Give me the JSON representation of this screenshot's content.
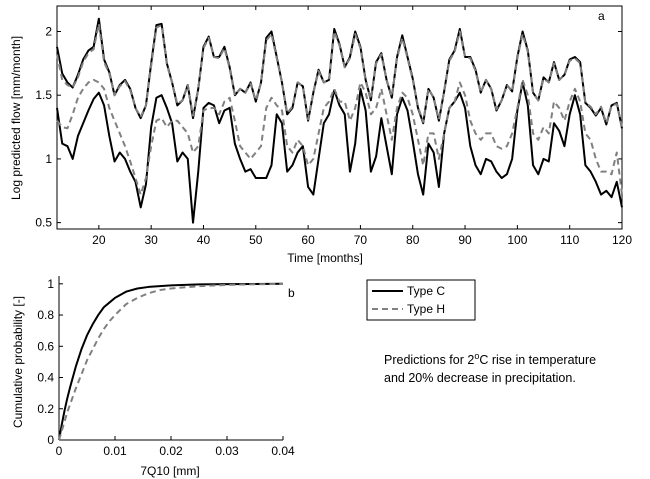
{
  "annotation": {
    "line1_prefix": "Predictions for 2",
    "line1_sup": "o",
    "line1_suffix": "C rise in temperature",
    "line2": "and 20% decrease in precipitation."
  },
  "colors": {
    "type_c": "#000000",
    "type_h": "#808080"
  },
  "chart_data": [
    {
      "type": "line",
      "panel_label": "a",
      "xlabel": "Time [months]",
      "ylabel": "Log predicted flow [mm/month]",
      "xlim": [
        12,
        120
      ],
      "ylim": [
        0.45,
        2.2
      ],
      "xticks": [
        20,
        30,
        40,
        50,
        60,
        70,
        80,
        90,
        100,
        110,
        120
      ],
      "yticks": [
        0.5,
        1,
        1.5,
        2
      ],
      "ytick_labels": [
        "0.5",
        "1",
        "1.5",
        "2"
      ],
      "grid": false,
      "x": [
        12,
        13,
        14,
        15,
        16,
        17,
        18,
        19,
        20,
        21,
        22,
        23,
        24,
        25,
        26,
        27,
        28,
        29,
        30,
        31,
        32,
        33,
        34,
        35,
        36,
        37,
        38,
        39,
        40,
        41,
        42,
        43,
        44,
        45,
        46,
        47,
        48,
        49,
        50,
        51,
        52,
        53,
        54,
        55,
        56,
        57,
        58,
        59,
        60,
        61,
        62,
        63,
        64,
        65,
        66,
        67,
        68,
        69,
        70,
        71,
        72,
        73,
        74,
        75,
        76,
        77,
        78,
        79,
        80,
        81,
        82,
        83,
        84,
        85,
        86,
        87,
        88,
        89,
        90,
        91,
        92,
        93,
        94,
        95,
        96,
        97,
        98,
        99,
        100,
        101,
        102,
        103,
        104,
        105,
        106,
        107,
        108,
        109,
        110,
        111,
        112,
        113,
        114,
        115,
        116,
        117,
        118,
        119,
        120
      ],
      "series": [
        {
          "style": "solid",
          "color": "#000000",
          "values": [
            1.88,
            1.67,
            1.6,
            1.56,
            1.66,
            1.78,
            1.85,
            1.88,
            2.1,
            1.78,
            1.68,
            1.5,
            1.58,
            1.62,
            1.55,
            1.4,
            1.32,
            1.42,
            1.75,
            2.05,
            2.06,
            1.75,
            1.6,
            1.42,
            1.46,
            1.58,
            1.32,
            1.55,
            1.88,
            1.96,
            1.8,
            1.8,
            1.88,
            1.72,
            1.5,
            1.55,
            1.52,
            1.6,
            1.45,
            1.6,
            1.95,
            2.0,
            1.8,
            1.6,
            1.35,
            1.4,
            1.6,
            1.57,
            1.3,
            1.52,
            1.7,
            1.6,
            1.62,
            2.02,
            1.9,
            1.72,
            1.8,
            2.0,
            1.88,
            1.62,
            1.46,
            1.76,
            1.83,
            1.62,
            1.48,
            1.8,
            1.97,
            1.8,
            1.63,
            1.4,
            1.28,
            1.55,
            1.48,
            1.3,
            1.53,
            1.78,
            1.85,
            2.02,
            1.8,
            1.8,
            1.7,
            1.52,
            1.62,
            1.55,
            1.38,
            1.46,
            1.58,
            1.53,
            1.8,
            2.0,
            1.85,
            1.52,
            1.46,
            1.64,
            1.6,
            1.76,
            1.62,
            1.66,
            1.78,
            1.8,
            1.76,
            1.44,
            1.4,
            1.34,
            1.4,
            1.27,
            1.42,
            1.44,
            1.24
          ]
        },
        {
          "style": "solid",
          "color": "#000000",
          "values": [
            1.4,
            1.12,
            1.1,
            1.0,
            1.18,
            1.28,
            1.38,
            1.47,
            1.52,
            1.42,
            1.18,
            0.98,
            1.05,
            1.0,
            0.9,
            0.82,
            0.62,
            0.8,
            1.25,
            1.48,
            1.5,
            1.4,
            1.28,
            0.98,
            1.05,
            1.0,
            0.5,
            0.9,
            1.4,
            1.44,
            1.42,
            1.28,
            1.38,
            1.4,
            1.12,
            1.0,
            0.9,
            0.92,
            0.85,
            0.85,
            0.85,
            0.95,
            1.35,
            1.28,
            0.9,
            0.95,
            1.05,
            1.1,
            0.78,
            0.72,
            1.0,
            1.28,
            1.35,
            1.54,
            1.42,
            1.35,
            0.9,
            1.12,
            1.55,
            1.38,
            0.9,
            1.02,
            1.32,
            1.1,
            0.88,
            1.35,
            1.48,
            1.38,
            1.14,
            0.88,
            0.72,
            1.12,
            1.05,
            0.78,
            1.2,
            1.4,
            1.45,
            1.52,
            1.4,
            1.1,
            0.95,
            0.88,
            1.0,
            0.98,
            0.9,
            0.85,
            0.88,
            1.0,
            1.38,
            1.6,
            1.42,
            0.95,
            0.88,
            1.0,
            0.98,
            1.28,
            1.22,
            1.1,
            1.35,
            1.5,
            1.35,
            0.95,
            0.9,
            0.82,
            0.72,
            0.75,
            0.7,
            0.82,
            0.62
          ]
        },
        {
          "style": "dashed",
          "color": "#808080",
          "values": [
            1.82,
            1.62,
            1.58,
            1.56,
            1.64,
            1.76,
            1.83,
            1.86,
            2.06,
            1.76,
            1.67,
            1.5,
            1.57,
            1.61,
            1.54,
            1.4,
            1.33,
            1.42,
            1.73,
            2.03,
            2.05,
            1.74,
            1.6,
            1.43,
            1.46,
            1.58,
            1.34,
            1.55,
            1.87,
            1.95,
            1.8,
            1.79,
            1.87,
            1.71,
            1.5,
            1.55,
            1.52,
            1.59,
            1.46,
            1.6,
            1.93,
            1.98,
            1.79,
            1.6,
            1.36,
            1.41,
            1.6,
            1.57,
            1.31,
            1.52,
            1.69,
            1.6,
            1.62,
            2.0,
            1.89,
            1.72,
            1.79,
            1.98,
            1.87,
            1.61,
            1.47,
            1.75,
            1.82,
            1.62,
            1.49,
            1.79,
            1.95,
            1.79,
            1.62,
            1.41,
            1.29,
            1.55,
            1.48,
            1.31,
            1.53,
            1.77,
            1.84,
            2.0,
            1.8,
            1.79,
            1.69,
            1.52,
            1.62,
            1.55,
            1.39,
            1.46,
            1.58,
            1.53,
            1.79,
            1.98,
            1.84,
            1.52,
            1.46,
            1.63,
            1.6,
            1.75,
            1.62,
            1.66,
            1.77,
            1.79,
            1.75,
            1.44,
            1.41,
            1.35,
            1.41,
            1.28,
            1.42,
            1.43,
            1.25
          ]
        },
        {
          "style": "dashed",
          "color": "#808080",
          "values": [
            1.3,
            1.25,
            1.24,
            1.35,
            1.48,
            1.55,
            1.6,
            1.62,
            1.6,
            1.55,
            1.4,
            1.3,
            1.2,
            1.1,
            0.98,
            0.85,
            0.72,
            0.85,
            1.1,
            1.3,
            1.32,
            1.25,
            1.3,
            1.3,
            1.25,
            1.2,
            1.05,
            1.1,
            1.38,
            1.4,
            1.4,
            1.35,
            1.45,
            1.48,
            1.3,
            1.1,
            1.05,
            1.0,
            1.05,
            1.1,
            1.4,
            1.48,
            1.42,
            1.38,
            1.1,
            1.05,
            1.15,
            1.1,
            0.95,
            1.0,
            1.2,
            1.4,
            1.45,
            1.55,
            1.45,
            1.45,
            1.3,
            1.4,
            1.6,
            1.52,
            1.35,
            1.4,
            1.55,
            1.35,
            1.15,
            1.4,
            1.52,
            1.48,
            1.35,
            1.15,
            0.95,
            1.2,
            1.2,
            1.0,
            1.2,
            1.4,
            1.45,
            1.6,
            1.5,
            1.3,
            1.2,
            1.15,
            1.2,
            1.2,
            1.1,
            1.08,
            1.1,
            1.2,
            1.4,
            1.62,
            1.5,
            1.2,
            1.15,
            1.25,
            1.2,
            1.45,
            1.4,
            1.3,
            1.45,
            1.55,
            1.45,
            1.2,
            1.15,
            1.0,
            0.9,
            0.9,
            0.88,
            1.05,
            0.72
          ]
        }
      ]
    },
    {
      "type": "line",
      "panel_label": "b",
      "xlabel": "7Q10 [mm]",
      "ylabel": "Cumulative probability [-]",
      "xlim": [
        0,
        0.04
      ],
      "ylim": [
        0,
        1.05
      ],
      "xticks": [
        0,
        0.01,
        0.02,
        0.03,
        0.04
      ],
      "xtick_labels": [
        "0",
        "0.01",
        "0.02",
        "0.03",
        "0.04"
      ],
      "yticks": [
        0,
        0.2,
        0.4,
        0.6,
        0.8,
        1
      ],
      "ytick_labels": [
        "0",
        "0.2",
        "0.4",
        "0.6",
        "0.8",
        "1"
      ],
      "grid": false,
      "legend_position": "outside-right",
      "x": [
        0,
        0.0005,
        0.001,
        0.0015,
        0.002,
        0.003,
        0.004,
        0.005,
        0.006,
        0.007,
        0.008,
        0.009,
        0.01,
        0.012,
        0.014,
        0.016,
        0.018,
        0.02,
        0.025,
        0.03,
        0.035,
        0.04
      ],
      "series": [
        {
          "name": "Type C",
          "style": "solid",
          "color": "#000000",
          "values": [
            0,
            0.1,
            0.19,
            0.27,
            0.34,
            0.47,
            0.58,
            0.67,
            0.74,
            0.8,
            0.85,
            0.88,
            0.91,
            0.95,
            0.97,
            0.98,
            0.985,
            0.99,
            0.996,
            0.998,
            0.999,
            1.0
          ]
        },
        {
          "name": "Type H",
          "style": "dashed",
          "color": "#808080",
          "values": [
            0,
            0.06,
            0.12,
            0.18,
            0.23,
            0.33,
            0.42,
            0.51,
            0.58,
            0.65,
            0.71,
            0.76,
            0.8,
            0.87,
            0.91,
            0.94,
            0.96,
            0.97,
            0.985,
            0.993,
            0.997,
            0.999
          ]
        }
      ]
    }
  ]
}
